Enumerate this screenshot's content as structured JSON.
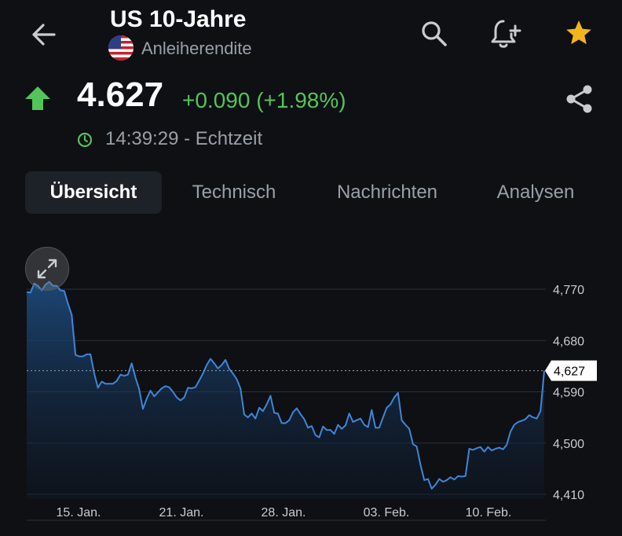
{
  "header": {
    "title": "US 10-Jahre",
    "subtitle": "Anleiherendite"
  },
  "quote": {
    "price": "4.627",
    "change": "+0.090 (+1.98%)",
    "time": "14:39:29 - Echtzeit",
    "direction": "up",
    "color_up": "#53c45a"
  },
  "icons": [
    "back-arrow-icon",
    "us-flag-icon",
    "search-icon",
    "add-alert-icon",
    "star-icon",
    "up-arrow-icon",
    "share-icon",
    "clock-icon",
    "expand-icon"
  ],
  "tabs": [
    {
      "label": "Übersicht",
      "active": true
    },
    {
      "label": "Technisch",
      "active": false
    },
    {
      "label": "Nachrichten",
      "active": false
    },
    {
      "label": "Analysen",
      "active": false
    }
  ],
  "chart_data": {
    "type": "area",
    "x_tick_labels": [
      "15. Jan.",
      "21. Jan.",
      "28. Jan.",
      "03. Feb.",
      "10. Feb."
    ],
    "y_tick_labels": [
      "4,770",
      "4,680",
      "4,590",
      "4,500",
      "4,410"
    ],
    "y_ticks": [
      4.77,
      4.68,
      4.59,
      4.5,
      4.41
    ],
    "ylim": [
      4.41,
      4.805
    ],
    "current_value_label": "4,627",
    "current_value": 4.627,
    "grid": true,
    "line_color": "#3f86d8",
    "values": [
      4.765,
      4.764,
      4.78,
      4.776,
      4.768,
      4.778,
      4.783,
      4.776,
      4.776,
      4.768,
      4.767,
      4.745,
      4.725,
      4.655,
      4.652,
      4.652,
      4.656,
      4.656,
      4.622,
      4.597,
      4.608,
      4.604,
      4.604,
      4.604,
      4.609,
      4.62,
      4.618,
      4.62,
      4.64,
      4.615,
      4.594,
      4.56,
      4.578,
      4.592,
      4.582,
      4.589,
      4.596,
      4.6,
      4.598,
      4.59,
      4.58,
      4.575,
      4.58,
      4.597,
      4.596,
      4.598,
      4.61,
      4.622,
      4.637,
      4.648,
      4.64,
      4.631,
      4.637,
      4.646,
      4.63,
      4.622,
      4.612,
      4.596,
      4.55,
      4.545,
      4.552,
      4.543,
      4.562,
      4.556,
      4.568,
      4.583,
      4.553,
      4.552,
      4.535,
      4.535,
      4.54,
      4.554,
      4.561,
      4.551,
      4.542,
      4.527,
      4.53,
      4.514,
      4.51,
      4.529,
      4.523,
      4.523,
      4.516,
      4.532,
      4.525,
      4.531,
      4.552,
      4.537,
      4.54,
      4.543,
      4.532,
      4.528,
      4.558,
      4.527,
      4.527,
      4.545,
      4.562,
      4.568,
      4.58,
      4.588,
      4.54,
      4.532,
      4.525,
      4.498,
      4.494,
      4.462,
      4.435,
      4.437,
      4.42,
      4.427,
      4.437,
      4.432,
      4.435,
      4.44,
      4.436,
      4.442,
      4.441,
      4.442,
      4.49,
      4.488,
      4.491,
      4.493,
      4.485,
      4.493,
      4.487,
      4.49,
      4.492,
      4.489,
      4.497,
      4.52,
      4.532,
      4.537,
      4.539,
      4.542,
      4.549,
      4.545,
      4.543,
      4.556,
      4.627
    ]
  }
}
